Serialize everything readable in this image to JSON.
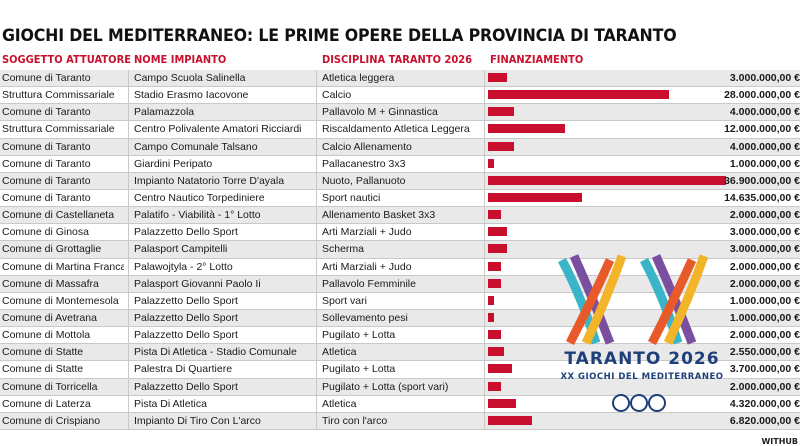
{
  "title": "GIOCHI DEL MEDITERRANEO: LE PRIME OPERE DELLA PROVINCIA DI TARANTO",
  "headers": [
    "SOGGETTO ATTUATORE",
    "NOME IMPIANTO",
    "DISCIPLINA TARANTO 2026",
    "FINANZIAMENTO"
  ],
  "rows": [
    [
      "Comune di Taranto",
      "Campo Scuola Salinella",
      "Atletica leggera",
      "3.000.000,00 €"
    ],
    [
      "Struttura Commissariale",
      "Stadio Erasmo Iacovone",
      "Calcio",
      "28.000.000,00 €"
    ],
    [
      "Comune di Taranto",
      "Palamazzola",
      "Pallavolo M + Ginnastica",
      "4.000.000,00 €"
    ],
    [
      "Struttura Commissariale",
      "Centro Polivalente Amatori Ricciardi",
      "Riscaldamento Atletica Leggera",
      "12.000.000,00 €"
    ],
    [
      "Comune di Taranto",
      "Campo Comunale Talsano",
      "Calcio Allenamento",
      "4.000.000,00 €"
    ],
    [
      "Comune di Taranto",
      "Giardini Peripato",
      "Pallacanestro 3x3",
      "1.000.000,00 €"
    ],
    [
      "Comune di Taranto",
      "Impianto Natatorio Torre D'ayala",
      "Nuoto, Pallanuoto",
      "36.900.000,00 €"
    ],
    [
      "Comune di Taranto",
      "Centro Nautico Torpediniere",
      "Sport nautici",
      "14.635.000,00 €"
    ],
    [
      "Comune di Castellaneta",
      "Palatifo - Viabilità - 1° Lotto",
      "Allenamento Basket 3x3",
      "2.000.000,00 €"
    ],
    [
      "Comune di Ginosa",
      "Palazzetto Dello Sport",
      "Arti Marziali + Judo",
      "3.000.000,00 €"
    ],
    [
      "Comune di Grottaglie",
      "Palasport Campitelli",
      "Scherma",
      "3.000.000,00 €"
    ],
    [
      "Comune di Martina Franca",
      "Palawojtyla - 2° Lotto",
      "Arti Marziali + Judo",
      "2.000.000,00 €"
    ],
    [
      "Comune di Massafra",
      "Palasport Giovanni Paolo Ii",
      "Pallavolo Femminile",
      "2.000.000,00 €"
    ],
    [
      "Comune di Montemesola",
      "Palazzetto Dello Sport",
      "Sport vari",
      "1.000.000,00 €"
    ],
    [
      "Comune di Avetrana",
      "Palazzetto Dello Sport",
      "Sollevamento pesi",
      "1.000.000,00 €"
    ],
    [
      "Comune di Mottola",
      "Palazzetto Dello Sport",
      "Pugilato + Lotta",
      "2.000.000,00 €"
    ],
    [
      "Comune di Statte",
      "Pista Di Atletica - Stadio Comunale",
      "Atletica",
      "2.550.000,00 €"
    ],
    [
      "Comune di Statte",
      "Palestra Di Quartiere",
      "Pugilato + Lotta",
      "3.700.000,00 €"
    ],
    [
      "Comune di Torricella",
      "Palazzetto Dello Sport",
      "Pugilato + Lotta (sport vari)",
      "2.000.000,00 €"
    ],
    [
      "Comune di Laterza",
      "Pista Di Atletica",
      "Atletica",
      "4.320.000,00 €"
    ],
    [
      "Comune di Crispiano",
      "Impianto Di Tiro Con L'arco",
      "Tiro con l'arco",
      "6.820.000,00 €"
    ]
  ],
  "chart_data": {
    "type": "bar",
    "orientation": "horizontal",
    "value_unit": "€",
    "values": [
      3000000,
      28000000,
      4000000,
      12000000,
      4000000,
      1000000,
      36900000,
      14635000,
      2000000,
      3000000,
      3000000,
      2000000,
      2000000,
      1000000,
      1000000,
      2000000,
      2550000,
      3700000,
      2000000,
      4320000,
      6820000
    ],
    "max_value": 36900000
  },
  "logo": {
    "text": "TARANTO 2026",
    "subtext": "XX GIOCHI DEL MEDITERRANEO",
    "colors": [
      "#3ab4c8",
      "#7a4fa0",
      "#e85a2a",
      "#f2b428",
      "#1f3f7a"
    ]
  },
  "credit": "WITHUB",
  "colors": {
    "accent": "#c8102e",
    "alt_row": "#e9e9e9"
  }
}
